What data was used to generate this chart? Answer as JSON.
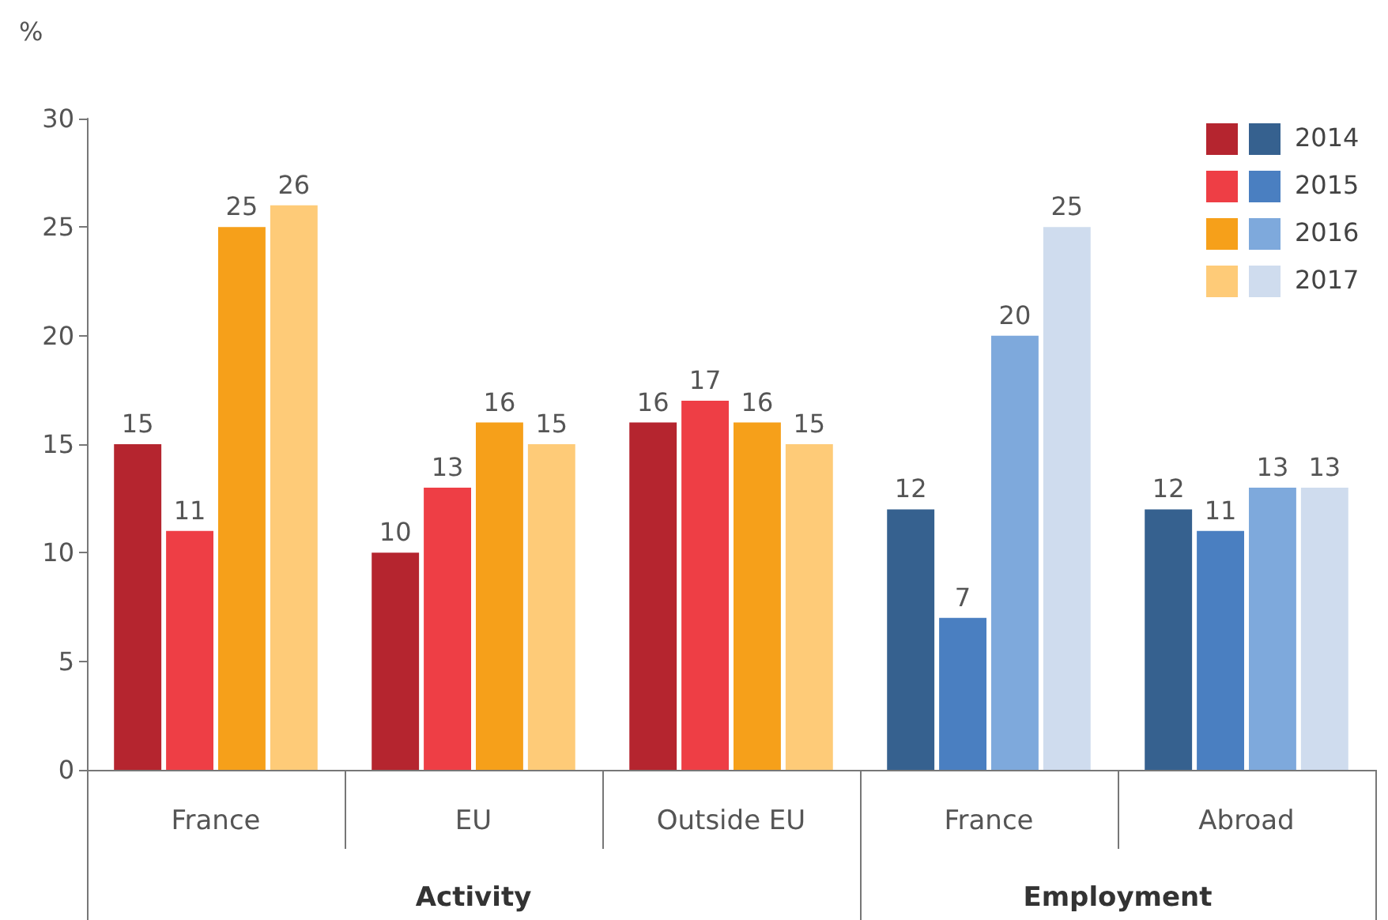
{
  "chart_data": {
    "type": "bar",
    "ylabel": "%",
    "categories": [
      "France",
      "EU",
      "Outside EU",
      "France",
      "Abroad"
    ],
    "series": [
      {
        "name": "2014",
        "values": [
          15,
          10,
          16,
          12,
          12
        ],
        "colors": [
          "#b5252f",
          "#b5252f",
          "#b5252f",
          "#36618f",
          "#36618f"
        ]
      },
      {
        "name": "2015",
        "values": [
          11,
          13,
          17,
          7,
          11
        ],
        "colors": [
          "#ee3e45",
          "#ee3e45",
          "#ee3e45",
          "#4a7fc1",
          "#4a7fc1"
        ]
      },
      {
        "name": "2016",
        "values": [
          25,
          16,
          16,
          20,
          13
        ],
        "colors": [
          "#f6a01a",
          "#f6a01a",
          "#f6a01a",
          "#7ea9dc",
          "#7ea9dc"
        ]
      },
      {
        "name": "2017",
        "values": [
          26,
          15,
          15,
          25,
          13
        ],
        "colors": [
          "#fecb78",
          "#fecb78",
          "#fecb78",
          "#cfdcee",
          "#cfdcee"
        ]
      }
    ],
    "annotations": [
      "Activity",
      "Employment"
    ],
    "ylim": [
      0,
      30
    ],
    "yticks": [
      0,
      5,
      10,
      15,
      20,
      25,
      30
    ],
    "grid": false,
    "legend": "top right",
    "data_labels": true
  }
}
